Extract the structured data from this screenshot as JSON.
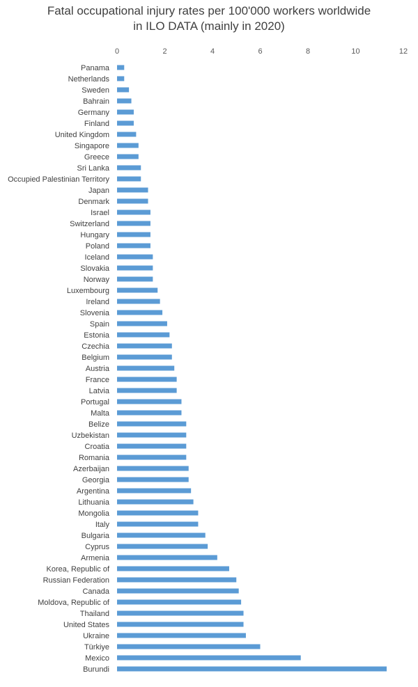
{
  "chart_data": {
    "type": "bar",
    "orientation": "horizontal",
    "title_lines": [
      "Fatal occupational injury rates per 100'000 workers worldwide",
      "in ILO DATA (mainly in 2020)"
    ],
    "xlabel": "",
    "ylabel": "",
    "xlim": [
      0,
      12
    ],
    "x_ticks": [
      0,
      2,
      4,
      6,
      8,
      10,
      12
    ],
    "x_axis_position": "top",
    "grid": false,
    "legend": "none",
    "bar_color": "#5b9bd5",
    "categories": [
      "Panama",
      "Netherlands",
      "Sweden",
      "Bahrain",
      "Germany",
      "Finland",
      "United Kingdom",
      "Singapore",
      "Greece",
      "Sri Lanka",
      "Occupied Palestinian Territory",
      "Japan",
      "Denmark",
      "Israel",
      "Switzerland",
      "Hungary",
      "Poland",
      "Iceland",
      "Slovakia",
      "Norway",
      "Luxembourg",
      "Ireland",
      "Slovenia",
      "Spain",
      "Estonia",
      "Czechia",
      "Belgium",
      "Austria",
      "France",
      "Latvia",
      "Portugal",
      "Malta",
      "Belize",
      "Uzbekistan",
      "Croatia",
      "Romania",
      "Azerbaijan",
      "Georgia",
      "Argentina",
      "Lithuania",
      "Mongolia",
      "Italy",
      "Bulgaria",
      "Cyprus",
      "Armenia",
      "Korea, Republic of",
      "Russian Federation",
      "Canada",
      "Moldova, Republic of",
      "Thailand",
      "United States",
      "Ukraine",
      "Türkiye",
      "Mexico",
      "Burundi"
    ],
    "values": [
      0.3,
      0.3,
      0.5,
      0.6,
      0.7,
      0.7,
      0.8,
      0.9,
      0.9,
      1.0,
      1.0,
      1.3,
      1.3,
      1.4,
      1.4,
      1.4,
      1.4,
      1.5,
      1.5,
      1.5,
      1.7,
      1.8,
      1.9,
      2.1,
      2.2,
      2.3,
      2.3,
      2.4,
      2.5,
      2.5,
      2.7,
      2.7,
      2.9,
      2.9,
      2.9,
      2.9,
      3.0,
      3.0,
      3.1,
      3.2,
      3.4,
      3.4,
      3.7,
      3.8,
      4.2,
      4.7,
      5.0,
      5.1,
      5.2,
      5.3,
      5.3,
      5.4,
      6.0,
      7.7,
      11.3
    ]
  }
}
